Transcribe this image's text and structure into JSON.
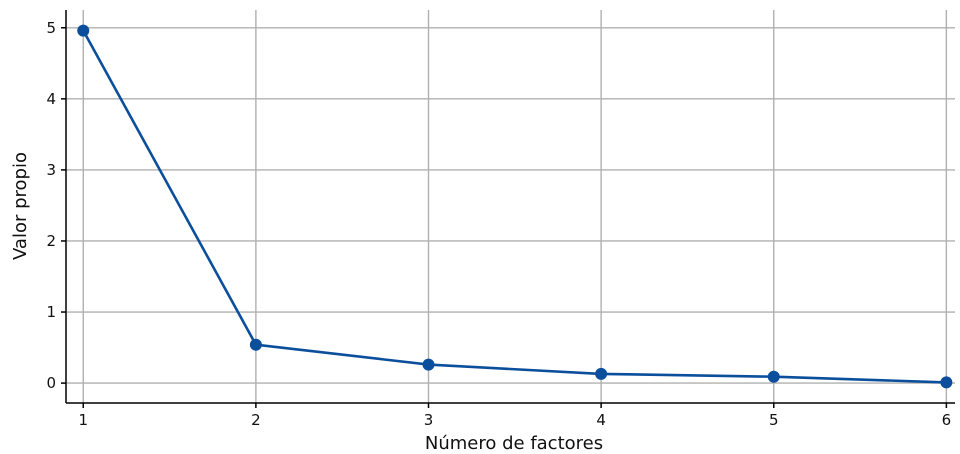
{
  "chart_data": {
    "type": "line",
    "xlabel": "Número de factores",
    "ylabel": "Valor propio",
    "x": [
      1,
      2,
      3,
      4,
      5,
      6
    ],
    "series": [
      {
        "values": [
          4.96,
          0.54,
          0.26,
          0.13,
          0.09,
          0.01
        ]
      }
    ],
    "xticks": [
      "1",
      "2",
      "3",
      "4",
      "5",
      "6"
    ],
    "yticks": [
      "0",
      "1",
      "2",
      "3",
      "4",
      "5"
    ],
    "xlim": [
      0.9,
      6.05
    ],
    "ylim": [
      -0.28,
      5.25
    ],
    "grid": true,
    "colors": {
      "line": "#0b4f9c",
      "grid": "#b0b0b0",
      "axis": "#000000"
    }
  }
}
